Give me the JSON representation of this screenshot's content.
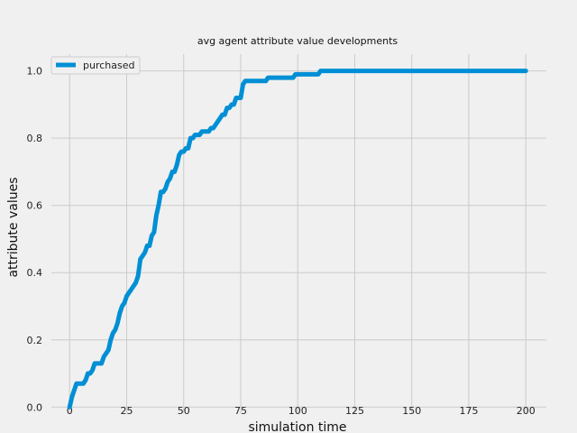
{
  "chart_data": {
    "type": "line",
    "title": "avg agent attribute value developments",
    "xlabel": "simulation time",
    "ylabel": "attribute values",
    "xlim": [
      -8,
      209
    ],
    "ylim": [
      -0.018,
      1.05
    ],
    "xticks": [
      0,
      25,
      50,
      75,
      100,
      125,
      150,
      175,
      200
    ],
    "xtick_labels": [
      "0",
      "25",
      "50",
      "75",
      "100",
      "125",
      "150",
      "175",
      "200"
    ],
    "yticks": [
      0.0,
      0.2,
      0.4,
      0.6,
      0.8,
      1.0
    ],
    "ytick_labels": [
      "0.0",
      "0.2",
      "0.4",
      "0.6",
      "0.8",
      "1.0"
    ],
    "grid": true,
    "legend_position": "upper-left",
    "colors": {
      "series": "#008fd5",
      "background": "#f0f0f0",
      "grid": "#cbcbcb"
    },
    "series": [
      {
        "name": "purchased",
        "x": [
          0,
          1,
          2,
          3,
          4,
          5,
          6,
          7,
          8,
          9,
          10,
          11,
          12,
          13,
          14,
          15,
          16,
          17,
          18,
          19,
          20,
          21,
          22,
          23,
          24,
          25,
          26,
          27,
          28,
          29,
          30,
          31,
          32,
          33,
          34,
          35,
          36,
          37,
          38,
          39,
          40,
          41,
          42,
          43,
          44,
          45,
          46,
          47,
          48,
          49,
          50,
          51,
          52,
          53,
          54,
          55,
          56,
          57,
          58,
          59,
          60,
          61,
          62,
          63,
          64,
          65,
          66,
          67,
          68,
          69,
          70,
          71,
          72,
          73,
          74,
          75,
          76,
          77,
          78,
          79,
          80,
          82,
          84,
          86,
          87,
          88,
          90,
          92,
          94,
          96,
          98,
          99,
          100,
          102,
          104,
          106,
          108,
          109,
          110,
          115,
          120,
          130,
          140,
          150,
          160,
          170,
          180,
          190,
          200
        ],
        "values": [
          0.0,
          0.03,
          0.05,
          0.07,
          0.07,
          0.07,
          0.07,
          0.08,
          0.1,
          0.1,
          0.11,
          0.13,
          0.13,
          0.13,
          0.13,
          0.15,
          0.16,
          0.17,
          0.2,
          0.22,
          0.23,
          0.25,
          0.28,
          0.3,
          0.31,
          0.33,
          0.34,
          0.35,
          0.36,
          0.37,
          0.39,
          0.44,
          0.45,
          0.46,
          0.48,
          0.48,
          0.51,
          0.52,
          0.57,
          0.6,
          0.64,
          0.64,
          0.65,
          0.67,
          0.68,
          0.7,
          0.7,
          0.72,
          0.75,
          0.76,
          0.76,
          0.77,
          0.77,
          0.8,
          0.8,
          0.81,
          0.81,
          0.81,
          0.82,
          0.82,
          0.82,
          0.82,
          0.83,
          0.83,
          0.84,
          0.85,
          0.86,
          0.87,
          0.87,
          0.89,
          0.89,
          0.9,
          0.9,
          0.92,
          0.92,
          0.92,
          0.96,
          0.97,
          0.97,
          0.97,
          0.97,
          0.97,
          0.97,
          0.97,
          0.98,
          0.98,
          0.98,
          0.98,
          0.98,
          0.98,
          0.98,
          0.99,
          0.99,
          0.99,
          0.99,
          0.99,
          0.99,
          0.99,
          1.0,
          1.0,
          1.0,
          1.0,
          1.0,
          1.0,
          1.0,
          1.0,
          1.0,
          1.0,
          1.0
        ]
      }
    ]
  }
}
